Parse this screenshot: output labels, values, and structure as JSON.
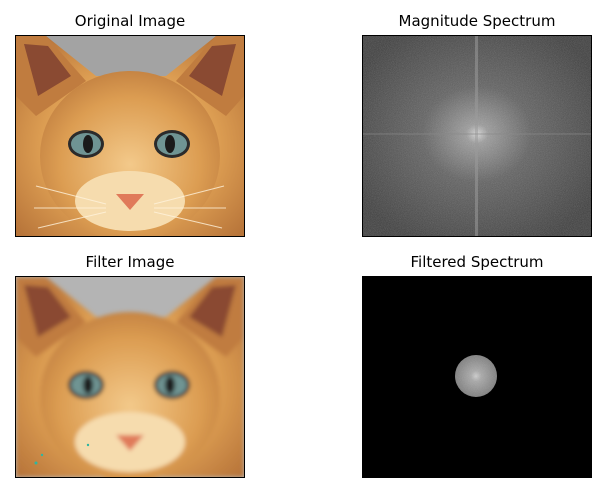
{
  "panels": [
    {
      "title": "Original Image",
      "content": "kitten-photo"
    },
    {
      "title": "Magnitude Spectrum",
      "content": "fft-magnitude"
    },
    {
      "title": "Filter Image",
      "content": "kitten-photo-lowpass"
    },
    {
      "title": "Filtered Spectrum",
      "content": "fft-masked"
    }
  ],
  "colors": {
    "fur": "#d99a4f",
    "fur_light": "#f1c27e",
    "ear_inner": "#8a4a32",
    "eye": "#5f7f80",
    "nose": "#e07a5a",
    "spectrum_gray": "#404040",
    "mask_bg": "#000000"
  }
}
